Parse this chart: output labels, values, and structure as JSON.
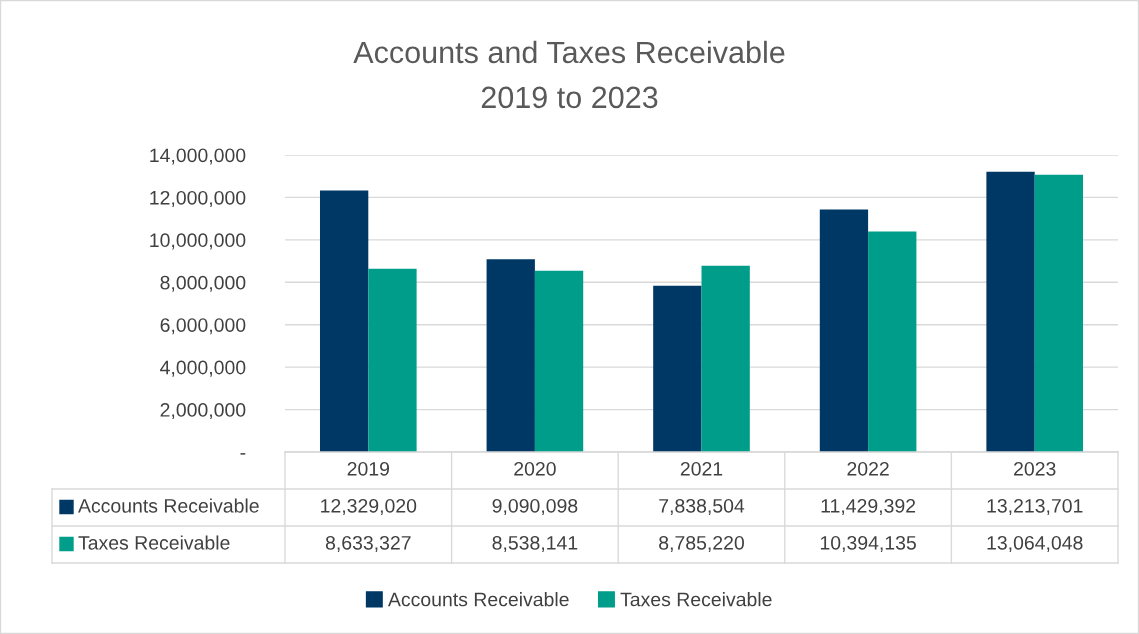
{
  "chart_data": {
    "type": "bar",
    "title": "Accounts and Taxes Receivable",
    "subtitle": "2019 to 2023",
    "categories": [
      "2019",
      "2020",
      "2021",
      "2022",
      "2023"
    ],
    "series": [
      {
        "name": "Accounts Receivable",
        "color": "#003865",
        "values": [
          12329020,
          9090098,
          7838504,
          11429392,
          13213701
        ],
        "value_labels": [
          "12,329,020",
          "9,090,098",
          "7,838,504",
          "11,429,392",
          "13,213,701"
        ]
      },
      {
        "name": "Taxes Receivable",
        "color": "#009e8a",
        "values": [
          8633327,
          8538141,
          8785220,
          10394135,
          13064048
        ],
        "value_labels": [
          "8,633,327",
          "8,538,141",
          "8,785,220",
          "10,394,135",
          "13,064,048"
        ]
      }
    ],
    "ylim": [
      0,
      14000000
    ],
    "yticks": [
      {
        "value": 0,
        "label": "-"
      },
      {
        "value": 2000000,
        "label": "2,000,000"
      },
      {
        "value": 4000000,
        "label": "4,000,000"
      },
      {
        "value": 6000000,
        "label": "6,000,000"
      },
      {
        "value": 8000000,
        "label": "8,000,000"
      },
      {
        "value": 10000000,
        "label": "10,000,000"
      },
      {
        "value": 12000000,
        "label": "12,000,000"
      },
      {
        "value": 14000000,
        "label": "14,000,000"
      }
    ],
    "grid": "y",
    "legend": "bottom"
  }
}
